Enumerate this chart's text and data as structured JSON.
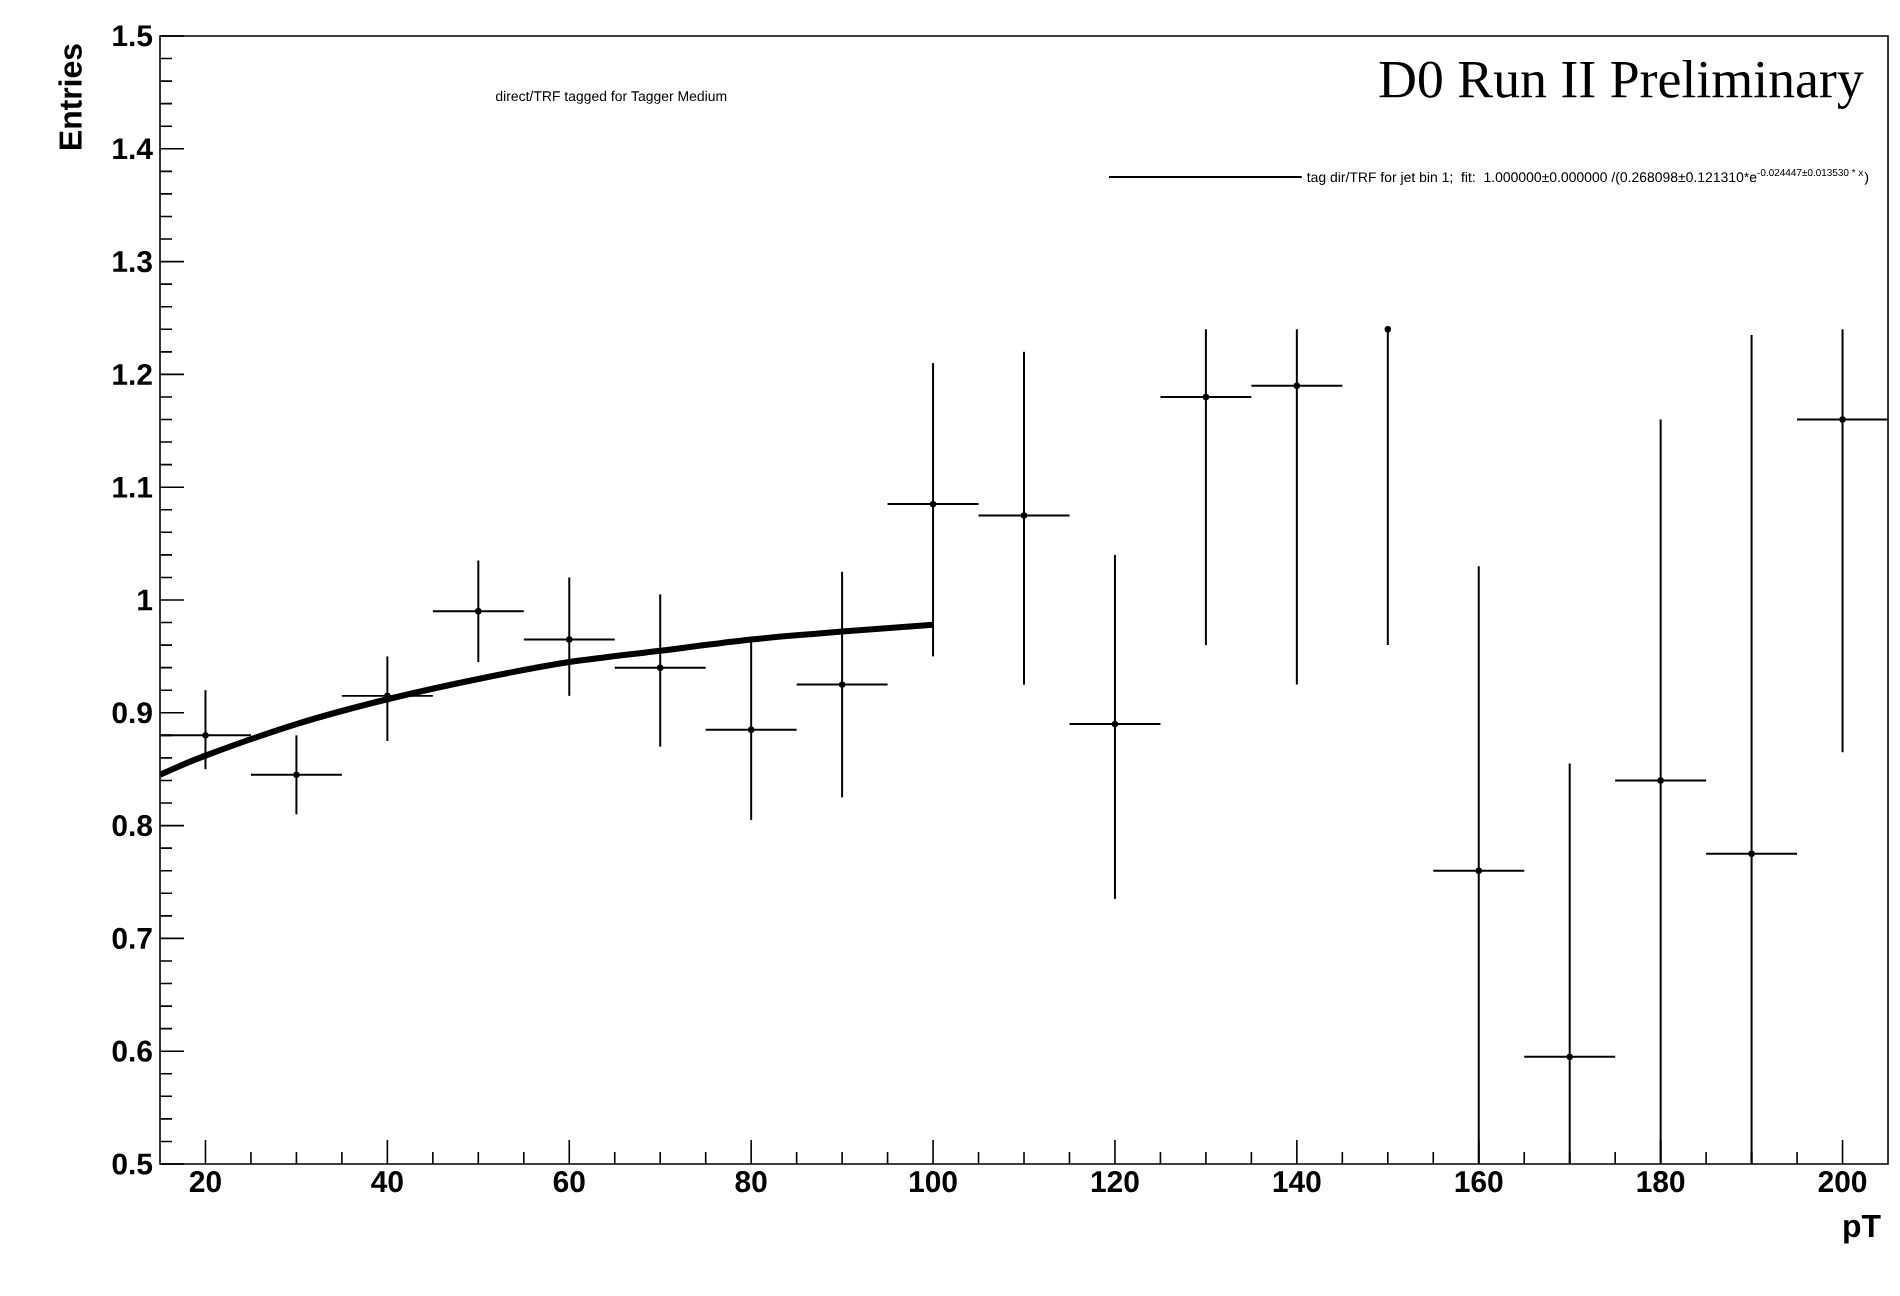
{
  "chart_data": {
    "type": "scatter",
    "title": "direct/TRF tagged for Tagger Medium",
    "xlabel": "pT",
    "ylabel": "Entries",
    "annotations": [
      "D0 Run II Preliminary"
    ],
    "xlim": [
      15,
      205
    ],
    "xticks": [
      20,
      40,
      60,
      80,
      100,
      120,
      140,
      160,
      180,
      200
    ],
    "ylim": [
      0.5,
      1.5
    ],
    "yticks": [
      0.5,
      0.6,
      0.7,
      0.8,
      0.9,
      1,
      1.1,
      1.2,
      1.3,
      1.4,
      1.5
    ],
    "grid": false,
    "legend": "top right",
    "series": [
      {
        "type": "scatter",
        "color": "#000000",
        "x": [
          20,
          30,
          40,
          50,
          60,
          70,
          80,
          90,
          100,
          110,
          120,
          130,
          140,
          150,
          160,
          170,
          180,
          190,
          200
        ],
        "values": [
          0.88,
          0.845,
          0.915,
          0.99,
          0.965,
          0.94,
          0.885,
          0.925,
          1.085,
          1.075,
          0.89,
          1.18,
          1.19,
          1.24,
          0.76,
          0.595,
          0.84,
          0.775,
          1.16
        ],
        "errors": [
          [
            0.85,
            0.92
          ],
          [
            0.81,
            0.88
          ],
          [
            0.875,
            0.95
          ],
          [
            0.945,
            1.035
          ],
          [
            0.915,
            1.02
          ],
          [
            0.87,
            1.005
          ],
          [
            0.805,
            0.965
          ],
          [
            0.825,
            1.025
          ],
          [
            0.95,
            1.21
          ],
          [
            0.925,
            1.22
          ],
          [
            0.735,
            1.04
          ],
          [
            0.96,
            1.24
          ],
          [
            0.925,
            1.24
          ],
          [
            0.96,
            1.24
          ],
          [
            0.5,
            1.03
          ],
          [
            0.5,
            0.855
          ],
          [
            0.5,
            1.16
          ],
          [
            0.5,
            1.235
          ],
          [
            0.865,
            1.24
          ]
        ],
        "xerrors": [
          5,
          5,
          5,
          5,
          5,
          5,
          5,
          5,
          5,
          5,
          5,
          5,
          5,
          null,
          5,
          5,
          5,
          5,
          5
        ]
      },
      {
        "type": "line",
        "name": "\\mbox{tag dir/TRF for jet bin 1;\\ \\ fit:\\ \\ 1.000000±0.000000 /(0.268098±0.121310*e}^{\\mbox{\\tiny -0.024447±0.013530 * x}}\\mbox{)}",
        "color": "#000000",
        "line_style": "solid",
        "x": [
          15,
          20,
          30,
          40,
          50,
          60,
          70,
          80,
          90,
          100
        ],
        "values": [
          0.845,
          0.862,
          0.89,
          0.912,
          0.93,
          0.945,
          0.955,
          0.965,
          0.972,
          0.978
        ]
      }
    ]
  }
}
